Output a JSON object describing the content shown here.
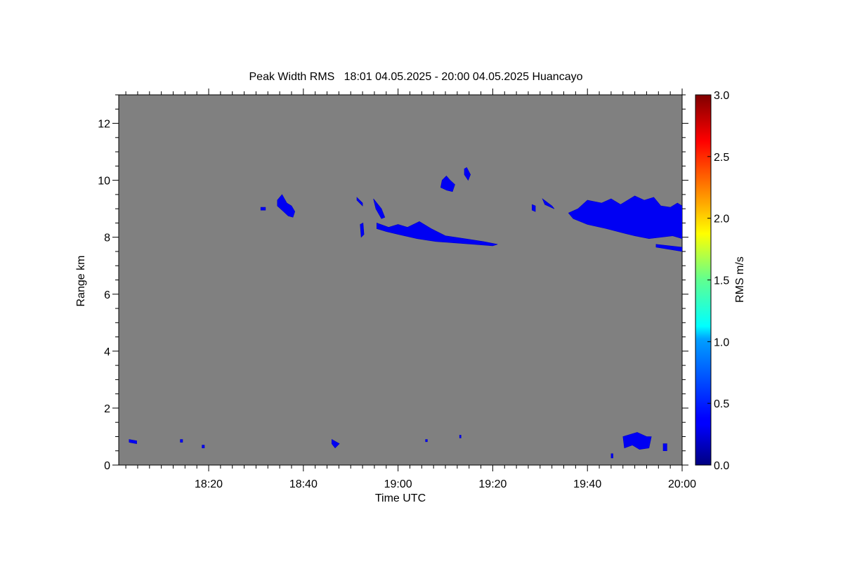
{
  "chart_data": {
    "type": "heatmap",
    "title": "Peak Width RMS   18:01 04.05.2025 - 20:00 04.05.2025 Huancayo",
    "xlabel": "Time UTC",
    "ylabel": "Range km",
    "x_range": [
      "18:01",
      "20:00"
    ],
    "xlim_minutes": [
      1,
      120
    ],
    "x_ticks": [
      {
        "label": "18:20",
        "minute": 20
      },
      {
        "label": "18:40",
        "minute": 40
      },
      {
        "label": "19:00",
        "minute": 60
      },
      {
        "label": "19:20",
        "minute": 80
      },
      {
        "label": "19:40",
        "minute": 100
      },
      {
        "label": "20:00",
        "minute": 120
      }
    ],
    "ylim": [
      0,
      13
    ],
    "y_ticks": [
      {
        "label": "0",
        "value": 0
      },
      {
        "label": "2",
        "value": 2
      },
      {
        "label": "4",
        "value": 4
      },
      {
        "label": "6",
        "value": 6
      },
      {
        "label": "8",
        "value": 8
      },
      {
        "label": "10",
        "value": 10
      },
      {
        "label": "12",
        "value": 12
      }
    ],
    "background_color": "#808080",
    "colorbar": {
      "label": "RMS m/s",
      "range": [
        0.0,
        3.0
      ],
      "ticks": [
        "0.0",
        "0.5",
        "1.0",
        "1.5",
        "2.0",
        "2.5",
        "3.0"
      ],
      "colormap": "jet"
    },
    "features": [
      {
        "name": "echo-18-32",
        "value": 0.3,
        "points": [
          [
            31,
            9.05
          ],
          [
            32,
            9.05
          ],
          [
            32,
            8.95
          ],
          [
            31,
            8.95
          ]
        ]
      },
      {
        "name": "echo-18-36",
        "value": 0.3,
        "points": [
          [
            34.5,
            9.3
          ],
          [
            35.5,
            9.5
          ],
          [
            36.5,
            9.2
          ],
          [
            37.5,
            9.1
          ],
          [
            38.2,
            8.9
          ],
          [
            37.8,
            8.7
          ],
          [
            36.8,
            8.75
          ],
          [
            35.5,
            8.95
          ],
          [
            34.5,
            9.1
          ]
        ]
      },
      {
        "name": "echo-18-52",
        "value": 0.3,
        "points": [
          [
            51.3,
            9.4
          ],
          [
            52.5,
            9.2
          ],
          [
            52.5,
            9.1
          ],
          [
            51.3,
            9.3
          ]
        ]
      },
      {
        "name": "echo-18-52b",
        "value": 0.3,
        "points": [
          [
            52.0,
            8.45
          ],
          [
            52.6,
            8.5
          ],
          [
            52.8,
            8.1
          ],
          [
            52.2,
            8.0
          ]
        ]
      },
      {
        "name": "echo-18-56",
        "value": 0.3,
        "points": [
          [
            54.8,
            9.35
          ],
          [
            56.5,
            9.0
          ],
          [
            57.2,
            8.7
          ],
          [
            56.5,
            8.65
          ],
          [
            55.3,
            9.0
          ]
        ]
      },
      {
        "name": "echo-19-00-layer",
        "value": 0.3,
        "points": [
          [
            55.5,
            8.5
          ],
          [
            58,
            8.35
          ],
          [
            60,
            8.45
          ],
          [
            62,
            8.35
          ],
          [
            64.5,
            8.55
          ],
          [
            67,
            8.3
          ],
          [
            70,
            8.05
          ],
          [
            74,
            7.95
          ],
          [
            78,
            7.85
          ],
          [
            81,
            7.75
          ],
          [
            80,
            7.7
          ],
          [
            76,
            7.75
          ],
          [
            72,
            7.8
          ],
          [
            68,
            7.85
          ],
          [
            64,
            7.95
          ],
          [
            60,
            8.1
          ],
          [
            57.5,
            8.2
          ],
          [
            55.5,
            8.3
          ]
        ]
      },
      {
        "name": "echo-19-12",
        "value": 0.3,
        "points": [
          [
            69.3,
            10.0
          ],
          [
            70.2,
            10.15
          ],
          [
            71.0,
            10.0
          ],
          [
            72.0,
            9.85
          ],
          [
            71.5,
            9.6
          ],
          [
            70.3,
            9.65
          ],
          [
            69.0,
            9.75
          ]
        ]
      },
      {
        "name": "echo-19-15",
        "value": 0.3,
        "points": [
          [
            74.0,
            10.4
          ],
          [
            74.5,
            10.45
          ],
          [
            75.3,
            10.2
          ],
          [
            74.8,
            10.0
          ],
          [
            74.0,
            10.2
          ]
        ]
      },
      {
        "name": "echo-19-30",
        "value": 0.3,
        "points": [
          [
            88.3,
            9.15
          ],
          [
            89.0,
            9.1
          ],
          [
            89.0,
            8.9
          ],
          [
            88.3,
            8.95
          ]
        ]
      },
      {
        "name": "echo-19-32",
        "value": 0.3,
        "points": [
          [
            90.5,
            9.35
          ],
          [
            92.5,
            9.1
          ],
          [
            93.0,
            9.0
          ],
          [
            91.0,
            9.15
          ]
        ]
      },
      {
        "name": "echo-19-50-layer",
        "value": 0.3,
        "points": [
          [
            96,
            8.85
          ],
          [
            98,
            9.0
          ],
          [
            100,
            9.3
          ],
          [
            103,
            9.2
          ],
          [
            105,
            9.35
          ],
          [
            107,
            9.15
          ],
          [
            110,
            9.45
          ],
          [
            112,
            9.3
          ],
          [
            114,
            9.4
          ],
          [
            115.5,
            9.1
          ],
          [
            117.5,
            9.05
          ],
          [
            119,
            9.2
          ],
          [
            120,
            9.1
          ],
          [
            120,
            7.95
          ],
          [
            118,
            8.05
          ],
          [
            115.5,
            8.0
          ],
          [
            113,
            7.95
          ],
          [
            110,
            8.05
          ],
          [
            107.5,
            8.15
          ],
          [
            104,
            8.3
          ],
          [
            100,
            8.45
          ],
          [
            97,
            8.65
          ]
        ]
      },
      {
        "name": "echo-19-56-lower",
        "value": 0.3,
        "points": [
          [
            114.5,
            7.75
          ],
          [
            120,
            7.65
          ],
          [
            120,
            7.5
          ],
          [
            114.5,
            7.65
          ]
        ]
      },
      {
        "name": "echo-18-03-low",
        "value": 0.3,
        "points": [
          [
            3.2,
            0.9
          ],
          [
            4.8,
            0.85
          ],
          [
            4.8,
            0.75
          ],
          [
            3.2,
            0.8
          ]
        ]
      },
      {
        "name": "echo-18-14-low",
        "value": 0.3,
        "points": [
          [
            14.0,
            0.9
          ],
          [
            14.5,
            0.9
          ],
          [
            14.5,
            0.8
          ],
          [
            14.0,
            0.8
          ]
        ]
      },
      {
        "name": "echo-18-18-low",
        "value": 0.3,
        "points": [
          [
            18.6,
            0.7
          ],
          [
            19.1,
            0.7
          ],
          [
            19.1,
            0.6
          ],
          [
            18.6,
            0.6
          ]
        ]
      },
      {
        "name": "echo-18-46-low",
        "value": 0.3,
        "points": [
          [
            46.0,
            0.9
          ],
          [
            47.6,
            0.75
          ],
          [
            46.7,
            0.6
          ],
          [
            46.0,
            0.75
          ]
        ]
      },
      {
        "name": "echo-19-06-low",
        "value": 0.3,
        "points": [
          [
            65.8,
            0.9
          ],
          [
            66.2,
            0.9
          ],
          [
            66.2,
            0.82
          ],
          [
            65.8,
            0.82
          ]
        ]
      },
      {
        "name": "echo-19-13-low",
        "value": 0.3,
        "points": [
          [
            73.0,
            1.05
          ],
          [
            73.3,
            1.05
          ],
          [
            73.3,
            0.95
          ],
          [
            73.0,
            0.95
          ]
        ]
      },
      {
        "name": "echo-19-50-low",
        "value": 0.3,
        "points": [
          [
            107.5,
            1.0
          ],
          [
            110.5,
            1.15
          ],
          [
            112.5,
            1.0
          ],
          [
            113.5,
            1.0
          ],
          [
            113.0,
            0.6
          ],
          [
            111.0,
            0.55
          ],
          [
            109.5,
            0.7
          ],
          [
            107.8,
            0.6
          ]
        ]
      },
      {
        "name": "echo-19-55-low",
        "value": 0.3,
        "points": [
          [
            116.0,
            0.75
          ],
          [
            116.8,
            0.75
          ],
          [
            116.8,
            0.5
          ],
          [
            116.0,
            0.5
          ]
        ]
      },
      {
        "name": "echo-19-46-low",
        "value": 0.3,
        "points": [
          [
            105.0,
            0.4
          ],
          [
            105.4,
            0.4
          ],
          [
            105.4,
            0.25
          ],
          [
            105.0,
            0.25
          ]
        ]
      }
    ]
  }
}
